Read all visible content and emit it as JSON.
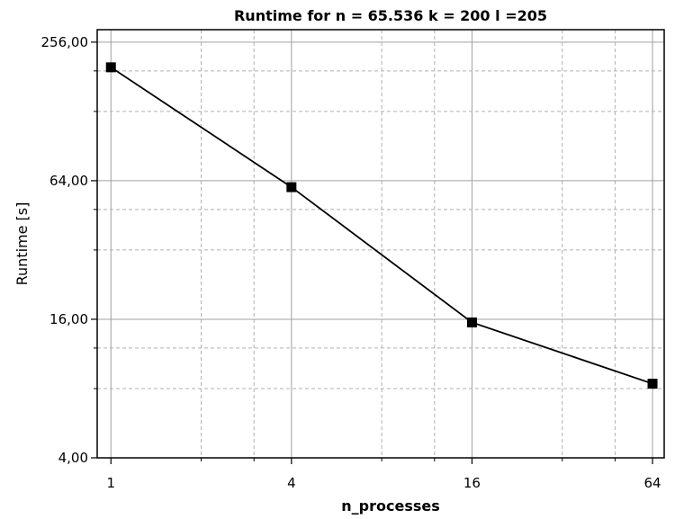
{
  "chart_data": {
    "type": "line",
    "title": "Runtime for n = 65.536 k = 200 l =205",
    "xlabel": "n_processes",
    "ylabel": "Runtime [s]",
    "x_scale": "log2",
    "y_scale": "log2",
    "xlim": [
      0.9,
      70
    ],
    "ylim": [
      4,
      290
    ],
    "x_ticks": [
      1,
      4,
      16,
      64
    ],
    "x_tick_labels": [
      "1",
      "4",
      "16",
      "64"
    ],
    "y_ticks": [
      4,
      16,
      64,
      256
    ],
    "y_tick_labels": [
      "4,00",
      "16,00",
      "64,00",
      "256,00"
    ],
    "grid": true,
    "legend": "none",
    "series": [
      {
        "x": [
          1,
          4,
          16,
          64
        ],
        "values": [
          199,
          60,
          15.5,
          8.4
        ],
        "color": "#000000",
        "marker": "square"
      }
    ]
  }
}
